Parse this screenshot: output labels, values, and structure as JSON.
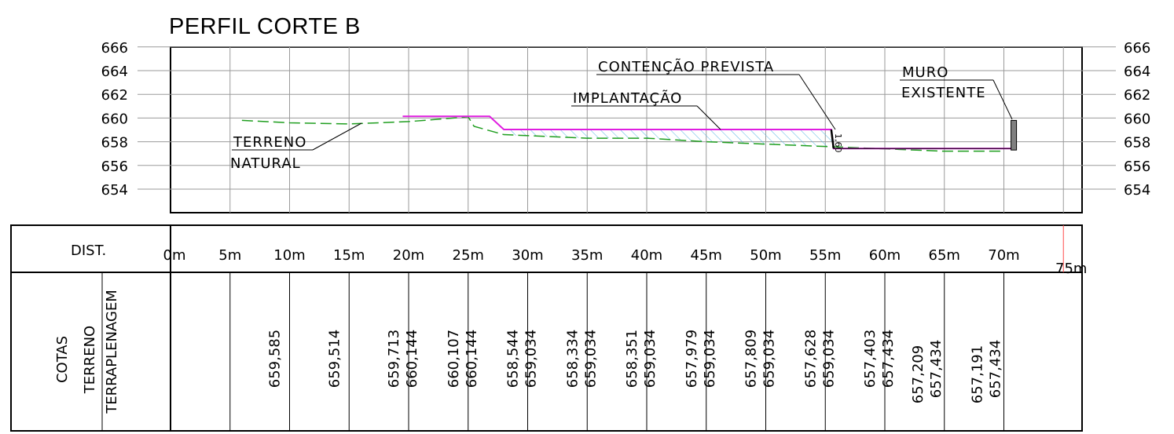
{
  "title": "PERFIL CORTE B",
  "profile": {
    "elevation_ticks": [
      654,
      656,
      658,
      660,
      662,
      664,
      666
    ],
    "elevation_labels": [
      "654",
      "656",
      "658",
      "660",
      "662",
      "664",
      "666"
    ],
    "labels": {
      "terreno_natural_1": "TERRENO",
      "terreno_natural_2": "NATURAL",
      "implantacao": "IMPLANTAÇÃO",
      "contencao": "CONTENÇÃO PREVISTA",
      "muro_1": "MURO",
      "muro_2": "EXISTENTE",
      "wall_height": "1,60"
    },
    "natural_terrain": [
      [
        6,
        659.8
      ],
      [
        10,
        659.6
      ],
      [
        15,
        659.5
      ],
      [
        20,
        659.7
      ],
      [
        25,
        660.1
      ],
      [
        25.5,
        659.3
      ],
      [
        28,
        658.6
      ],
      [
        35,
        658.3
      ],
      [
        40,
        658.3
      ],
      [
        45,
        658.0
      ],
      [
        50,
        657.8
      ],
      [
        55,
        657.6
      ],
      [
        60,
        657.4
      ],
      [
        65,
        657.2
      ],
      [
        70,
        657.2
      ]
    ],
    "implantation": [
      [
        19.5,
        660.14
      ],
      [
        26.8,
        660.14
      ],
      [
        28.0,
        659.03
      ],
      [
        55.5,
        659.03
      ],
      [
        55.7,
        657.43
      ],
      [
        71,
        657.43
      ]
    ],
    "colors": {
      "natural": "#1f9e1f",
      "implantation": "#e01ee0",
      "hatch": "#55b5e6",
      "muro": "#808080"
    }
  },
  "table": {
    "dist_label": "DIST.",
    "cotas_label": "COTAS",
    "terreno_label": "TERRENO",
    "terrap_label": "TERRAPLENAGEM",
    "distance_labels": [
      "0m",
      "5m",
      "10m",
      "15m",
      "20m",
      "25m",
      "30m",
      "35m",
      "40m",
      "45m",
      "50m",
      "55m",
      "60m",
      "65m",
      "70m",
      "75m"
    ],
    "values": [
      {
        "terreno": "659,585",
        "terrap": ""
      },
      {
        "terreno": "659,514",
        "terrap": ""
      },
      {
        "terreno": "659,713",
        "terrap": "660,144"
      },
      {
        "terreno": "660,107",
        "terrap": "660,144"
      },
      {
        "terreno": "658,544",
        "terrap": "659,034"
      },
      {
        "terreno": "658,334",
        "terrap": "659,034"
      },
      {
        "terreno": "658,351",
        "terrap": "659,034"
      },
      {
        "terreno": "657,979",
        "terrap": "659,034"
      },
      {
        "terreno": "657,809",
        "terrap": "659,034"
      },
      {
        "terreno": "657,628",
        "terrap": "659,034"
      },
      {
        "terreno": "657,403",
        "terrap": "657,434"
      },
      {
        "terreno": "657,209",
        "terrap": "657,434"
      },
      {
        "terreno": "657,191",
        "terrap": "657,434"
      }
    ]
  }
}
